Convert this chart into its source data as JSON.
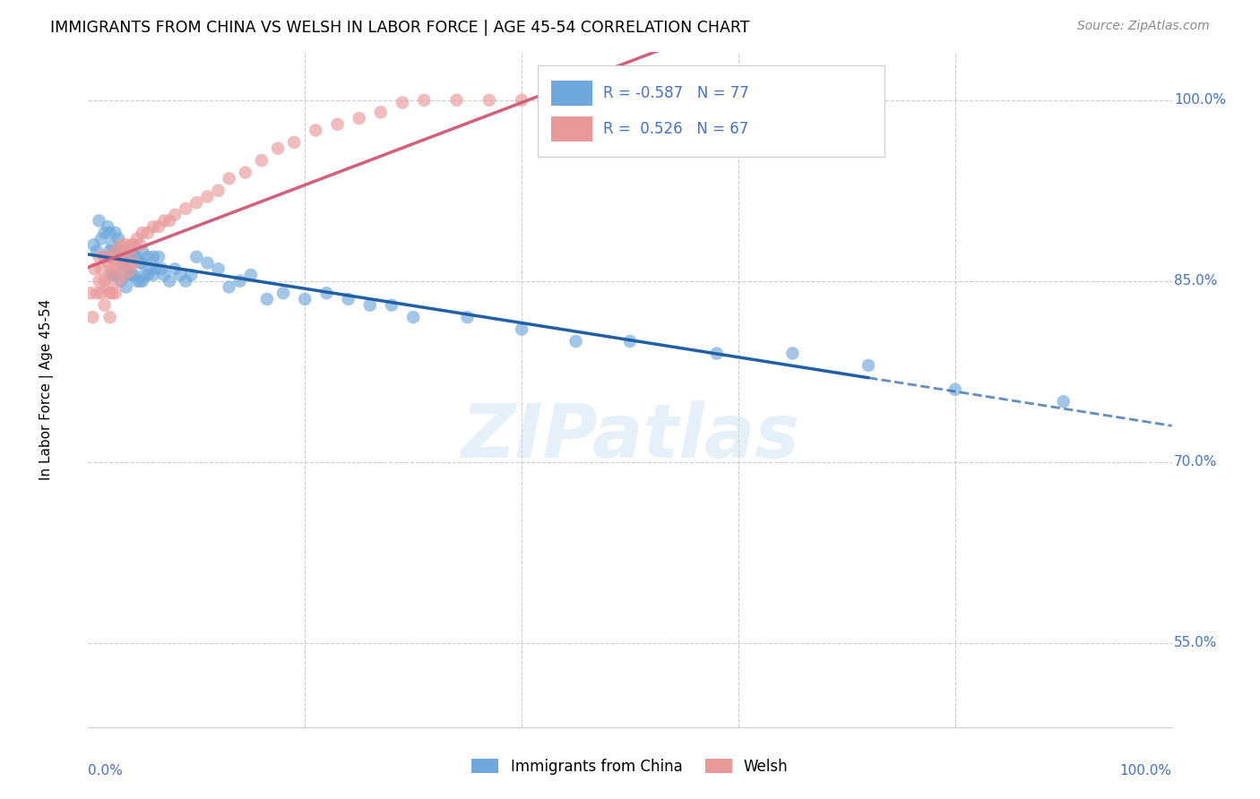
{
  "title": "IMMIGRANTS FROM CHINA VS WELSH IN LABOR FORCE | AGE 45-54 CORRELATION CHART",
  "source": "Source: ZipAtlas.com",
  "ylabel": "In Labor Force | Age 45-54",
  "xlim": [
    0.0,
    1.0
  ],
  "ylim": [
    0.48,
    1.04
  ],
  "blue_R": "-0.587",
  "blue_N": "77",
  "pink_R": "0.526",
  "pink_N": "67",
  "blue_color": "#6fa8dc",
  "pink_color": "#ea9999",
  "blue_line_color": "#1f5fa6",
  "pink_line_color": "#d45f7a",
  "legend_blue_label": "Immigrants from China",
  "legend_pink_label": "Welsh",
  "watermark": "ZIPatlas",
  "blue_scatter_x": [
    0.005,
    0.008,
    0.01,
    0.012,
    0.015,
    0.015,
    0.018,
    0.018,
    0.02,
    0.02,
    0.02,
    0.022,
    0.022,
    0.025,
    0.025,
    0.025,
    0.028,
    0.028,
    0.03,
    0.03,
    0.03,
    0.032,
    0.032,
    0.035,
    0.035,
    0.035,
    0.038,
    0.038,
    0.04,
    0.04,
    0.042,
    0.042,
    0.045,
    0.045,
    0.048,
    0.048,
    0.05,
    0.05,
    0.05,
    0.052,
    0.055,
    0.055,
    0.058,
    0.06,
    0.06,
    0.062,
    0.065,
    0.068,
    0.07,
    0.075,
    0.08,
    0.085,
    0.09,
    0.095,
    0.1,
    0.11,
    0.12,
    0.13,
    0.14,
    0.15,
    0.165,
    0.18,
    0.2,
    0.22,
    0.24,
    0.26,
    0.28,
    0.3,
    0.35,
    0.4,
    0.45,
    0.5,
    0.58,
    0.65,
    0.72,
    0.8,
    0.9
  ],
  "blue_scatter_y": [
    0.88,
    0.875,
    0.9,
    0.885,
    0.87,
    0.89,
    0.87,
    0.895,
    0.875,
    0.89,
    0.87,
    0.88,
    0.855,
    0.89,
    0.875,
    0.855,
    0.885,
    0.87,
    0.875,
    0.87,
    0.85,
    0.875,
    0.865,
    0.875,
    0.86,
    0.845,
    0.87,
    0.855,
    0.865,
    0.855,
    0.87,
    0.855,
    0.87,
    0.85,
    0.865,
    0.85,
    0.875,
    0.865,
    0.85,
    0.855,
    0.87,
    0.855,
    0.86,
    0.87,
    0.855,
    0.86,
    0.87,
    0.86,
    0.855,
    0.85,
    0.86,
    0.855,
    0.85,
    0.855,
    0.87,
    0.865,
    0.86,
    0.845,
    0.85,
    0.855,
    0.835,
    0.84,
    0.835,
    0.84,
    0.835,
    0.83,
    0.83,
    0.82,
    0.82,
    0.81,
    0.8,
    0.8,
    0.79,
    0.79,
    0.78,
    0.76,
    0.75
  ],
  "pink_scatter_x": [
    0.002,
    0.004,
    0.006,
    0.008,
    0.01,
    0.01,
    0.012,
    0.012,
    0.015,
    0.015,
    0.015,
    0.018,
    0.018,
    0.02,
    0.02,
    0.02,
    0.02,
    0.022,
    0.022,
    0.025,
    0.025,
    0.025,
    0.028,
    0.028,
    0.03,
    0.03,
    0.032,
    0.032,
    0.035,
    0.035,
    0.038,
    0.038,
    0.04,
    0.042,
    0.042,
    0.045,
    0.048,
    0.05,
    0.055,
    0.06,
    0.065,
    0.07,
    0.075,
    0.08,
    0.09,
    0.1,
    0.11,
    0.12,
    0.13,
    0.145,
    0.16,
    0.175,
    0.19,
    0.21,
    0.23,
    0.25,
    0.27,
    0.29,
    0.31,
    0.34,
    0.37,
    0.4,
    0.44,
    0.48,
    0.52,
    0.56,
    0.6
  ],
  "pink_scatter_y": [
    0.84,
    0.82,
    0.86,
    0.84,
    0.87,
    0.85,
    0.86,
    0.84,
    0.87,
    0.85,
    0.83,
    0.865,
    0.845,
    0.87,
    0.855,
    0.84,
    0.82,
    0.86,
    0.84,
    0.875,
    0.86,
    0.84,
    0.87,
    0.85,
    0.88,
    0.865,
    0.875,
    0.855,
    0.88,
    0.865,
    0.875,
    0.858,
    0.88,
    0.88,
    0.865,
    0.885,
    0.88,
    0.89,
    0.89,
    0.895,
    0.895,
    0.9,
    0.9,
    0.905,
    0.91,
    0.915,
    0.92,
    0.925,
    0.935,
    0.94,
    0.95,
    0.96,
    0.965,
    0.975,
    0.98,
    0.985,
    0.99,
    0.998,
    1.0,
    1.0,
    1.0,
    1.0,
    1.0,
    1.0,
    1.0,
    1.0,
    1.0
  ]
}
